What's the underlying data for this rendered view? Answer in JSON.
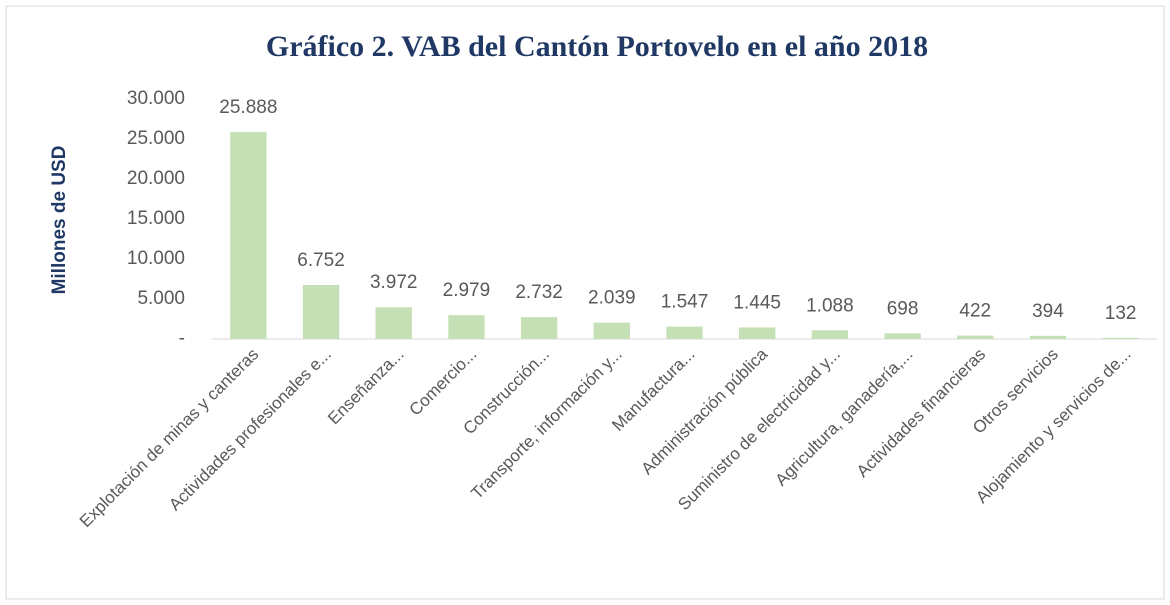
{
  "chart_data": {
    "type": "bar",
    "title": "Gráfico 2. VAB del Cantón Portovelo en el año 2018",
    "y_label": "Millones de USD",
    "categories": [
      "Explotación de minas y canteras",
      "Actividades profesionales e...",
      "Enseñanza...",
      "Comercio...",
      "Construcción...",
      "Transporte, información y...",
      "Manufactura...",
      "Administración pública",
      "Suministro de electricidad y...",
      "Agricultura, ganadería,...",
      "Actividades financieras",
      "Otros servicios",
      "Alojamiento y servicios de..."
    ],
    "values": [
      25888,
      6752,
      3972,
      2979,
      2732,
      2039,
      1547,
      1445,
      1088,
      698,
      422,
      394,
      132
    ],
    "value_labels": [
      "25.888",
      "6.752",
      "3.972",
      "2.979",
      "2.732",
      "2.039",
      "1.547",
      "1.445",
      "1.088",
      "698",
      "422",
      "394",
      "132"
    ],
    "color": "#c5e0b4",
    "ylim": [
      0,
      30000
    ],
    "yticks": [
      {
        "value": 0,
        "label": "-"
      },
      {
        "value": 5000,
        "label": "5.000"
      },
      {
        "value": 10000,
        "label": "10.000"
      },
      {
        "value": 15000,
        "label": "15.000"
      },
      {
        "value": 20000,
        "label": "20.000"
      },
      {
        "value": 25000,
        "label": "25.000"
      },
      {
        "value": 30000,
        "label": "30.000"
      }
    ],
    "grid": false
  }
}
